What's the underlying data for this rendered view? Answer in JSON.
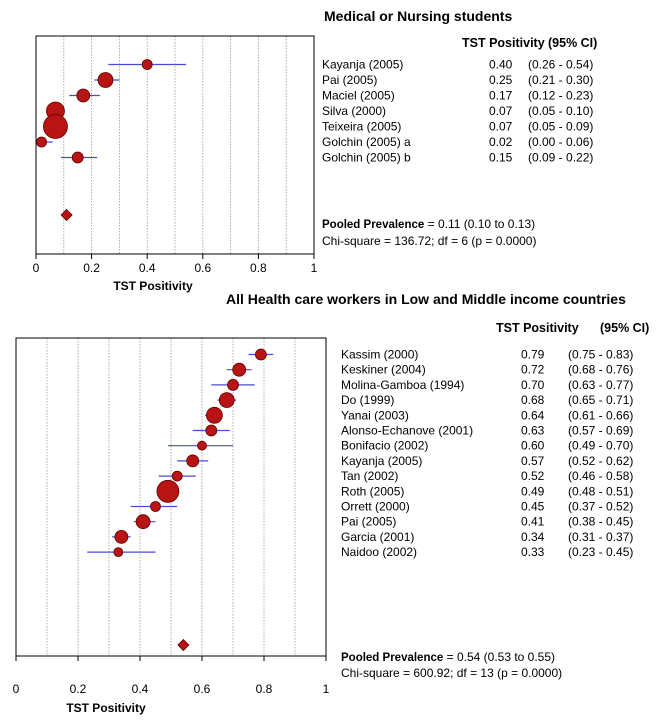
{
  "colors": {
    "marker": "#b81414",
    "marker_stroke": "#5a0000",
    "ci": "#4a4ad0",
    "grid": "#9a9a9a",
    "frame": "#000000"
  },
  "chart_data": [
    {
      "type": "forest",
      "title": "Medical or Nursing students",
      "xlabel": "TST Positivity",
      "header_value": "TST Positivity",
      "header_ci": "(95% CI)",
      "xlim": [
        0,
        1
      ],
      "xticks": [
        "0",
        "0.2",
        "0.4",
        "0.6",
        "0.8",
        "1"
      ],
      "grid": true,
      "studies": [
        {
          "label": "Kayanja (2005)",
          "value": 0.4,
          "value_text": "0.40",
          "lo": 0.26,
          "hi": 0.54,
          "ci_text": "(0.26 - 0.54)",
          "weight": 1.0
        },
        {
          "label": "Pai (2005)",
          "value": 0.25,
          "value_text": "0.25",
          "lo": 0.21,
          "hi": 0.3,
          "ci_text": "(0.21 - 0.30)",
          "weight": 1.5
        },
        {
          "label": "Maciel (2005)",
          "value": 0.17,
          "value_text": "0.17",
          "lo": 0.12,
          "hi": 0.23,
          "ci_text": "(0.12 - 0.23)",
          "weight": 1.3
        },
        {
          "label": "Silva (2000)",
          "value": 0.07,
          "value_text": "0.07",
          "lo": 0.05,
          "hi": 0.1,
          "ci_text": "(0.05 - 0.10)",
          "weight": 1.8
        },
        {
          "label": "Teixeira (2005)",
          "value": 0.07,
          "value_text": "0.07",
          "lo": 0.05,
          "hi": 0.09,
          "ci_text": "(0.05 - 0.09)",
          "weight": 2.4
        },
        {
          "label": "Golchin (2005) a",
          "value": 0.02,
          "value_text": "0.02",
          "lo": 0.0,
          "hi": 0.06,
          "ci_text": "(0.00 - 0.06)",
          "weight": 1.0
        },
        {
          "label": "Golchin (2005) b",
          "value": 0.15,
          "value_text": "0.15",
          "lo": 0.09,
          "hi": 0.22,
          "ci_text": "(0.09 - 0.22)",
          "weight": 1.1
        }
      ],
      "pooled": {
        "value": 0.11,
        "label_bold": "Pooled Prevalence",
        "text": "= 0.11 (0.10 to 0.13)"
      },
      "heterogeneity": "Chi-square = 136.72; df =  6 (p = 0.0000)"
    },
    {
      "type": "forest",
      "title": "All Health care workers in Low and Middle income countries",
      "xlabel": "TST Positivity",
      "header_value": "TST Positivity",
      "header_ci": "(95% CI)",
      "xlim": [
        0,
        1
      ],
      "xticks": [
        "0",
        "0.2",
        "0.4",
        "0.6",
        "0.8",
        "1"
      ],
      "grid": true,
      "studies": [
        {
          "label": "Kassim (2000)",
          "value": 0.79,
          "value_text": "0.79",
          "lo": 0.75,
          "hi": 0.83,
          "ci_text": "(0.75 - 0.83)",
          "weight": 1.1
        },
        {
          "label": "Keskiner (2004)",
          "value": 0.72,
          "value_text": "0.72",
          "lo": 0.68,
          "hi": 0.76,
          "ci_text": "(0.68 - 0.76)",
          "weight": 1.3
        },
        {
          "label": "Molina-Gamboa (1994)",
          "value": 0.7,
          "value_text": "0.70",
          "lo": 0.63,
          "hi": 0.77,
          "ci_text": "(0.63 - 0.77)",
          "weight": 1.1
        },
        {
          "label": "Do (1999)",
          "value": 0.68,
          "value_text": "0.68",
          "lo": 0.65,
          "hi": 0.71,
          "ci_text": "(0.65 - 0.71)",
          "weight": 1.5
        },
        {
          "label": "Yanai (2003)",
          "value": 0.64,
          "value_text": "0.64",
          "lo": 0.61,
          "hi": 0.66,
          "ci_text": "(0.61 - 0.66)",
          "weight": 1.6
        },
        {
          "label": "Alonso-Echanove (2001)",
          "value": 0.63,
          "value_text": "0.63",
          "lo": 0.57,
          "hi": 0.69,
          "ci_text": "(0.57 - 0.69)",
          "weight": 1.1
        },
        {
          "label": "Bonifacio (2002)",
          "value": 0.6,
          "value_text": "0.60",
          "lo": 0.49,
          "hi": 0.7,
          "ci_text": "(0.49 - 0.70)",
          "weight": 0.9
        },
        {
          "label": "Kayanja (2005)",
          "value": 0.57,
          "value_text": "0.57",
          "lo": 0.52,
          "hi": 0.62,
          "ci_text": "(0.52 - 0.62)",
          "weight": 1.2
        },
        {
          "label": "Tan (2002)",
          "value": 0.52,
          "value_text": "0.52",
          "lo": 0.46,
          "hi": 0.58,
          "ci_text": "(0.46 - 0.58)",
          "weight": 1.0
        },
        {
          "label": "Roth (2005)",
          "value": 0.49,
          "value_text": "0.49",
          "lo": 0.48,
          "hi": 0.51,
          "ci_text": "(0.48 - 0.51)",
          "weight": 2.2
        },
        {
          "label": "Orrett (2000)",
          "value": 0.45,
          "value_text": "0.45",
          "lo": 0.37,
          "hi": 0.52,
          "ci_text": "(0.37 - 0.52)",
          "weight": 1.0
        },
        {
          "label": "Pai (2005)",
          "value": 0.41,
          "value_text": "0.41",
          "lo": 0.38,
          "hi": 0.45,
          "ci_text": "(0.38 - 0.45)",
          "weight": 1.4
        },
        {
          "label": "Garcia (2001)",
          "value": 0.34,
          "value_text": "0.34",
          "lo": 0.31,
          "hi": 0.37,
          "ci_text": "(0.31 - 0.37)",
          "weight": 1.3
        },
        {
          "label": "Naidoo (2002)",
          "value": 0.33,
          "value_text": "0.33",
          "lo": 0.23,
          "hi": 0.45,
          "ci_text": "(0.23 - 0.45)",
          "weight": 0.9
        }
      ],
      "pooled": {
        "value": 0.54,
        "label_bold": "Pooled Prevalence",
        "text": "= 0.54 (0.53 to 0.55)"
      },
      "heterogeneity": "Chi-square = 600.92; df =  13 (p = 0.0000)"
    }
  ]
}
